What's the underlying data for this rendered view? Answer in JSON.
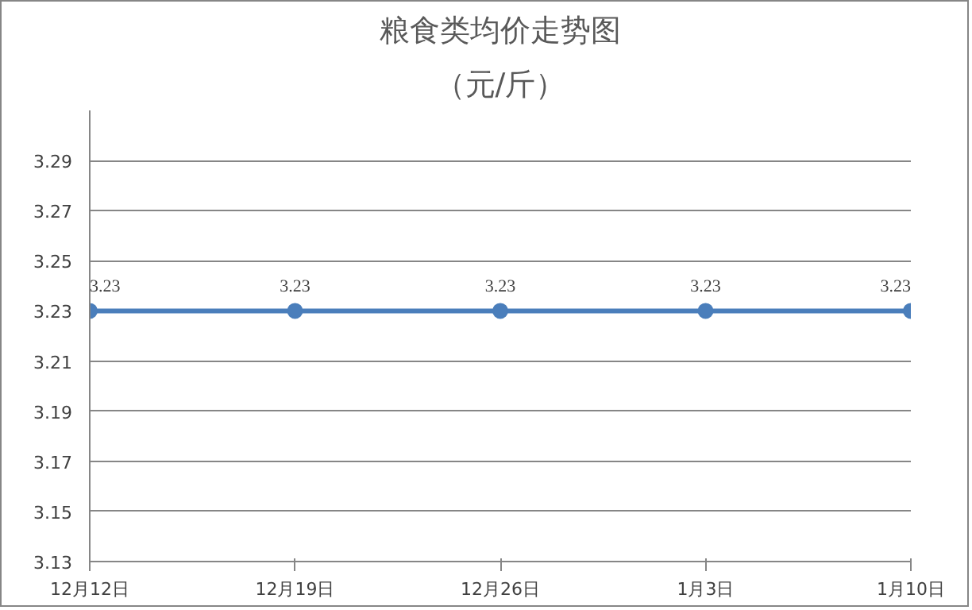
{
  "chart_data": {
    "type": "line",
    "title": "粮食类均价走势图",
    "subtitle": "（元/斤）",
    "categories": [
      "12月12日",
      "12月19日",
      "12月26日",
      "1月3日",
      "1月10日"
    ],
    "series": [
      {
        "color": "#4a7ebb",
        "values": [
          3.23,
          3.23,
          3.23,
          3.23,
          3.23
        ]
      }
    ],
    "ylim": [
      3.13,
      3.31
    ],
    "yticks": [
      3.13,
      3.15,
      3.17,
      3.19,
      3.21,
      3.23,
      3.25,
      3.27,
      3.29
    ],
    "grid": "y",
    "marker": "circle",
    "line_style": "solid",
    "data_labels": true
  }
}
